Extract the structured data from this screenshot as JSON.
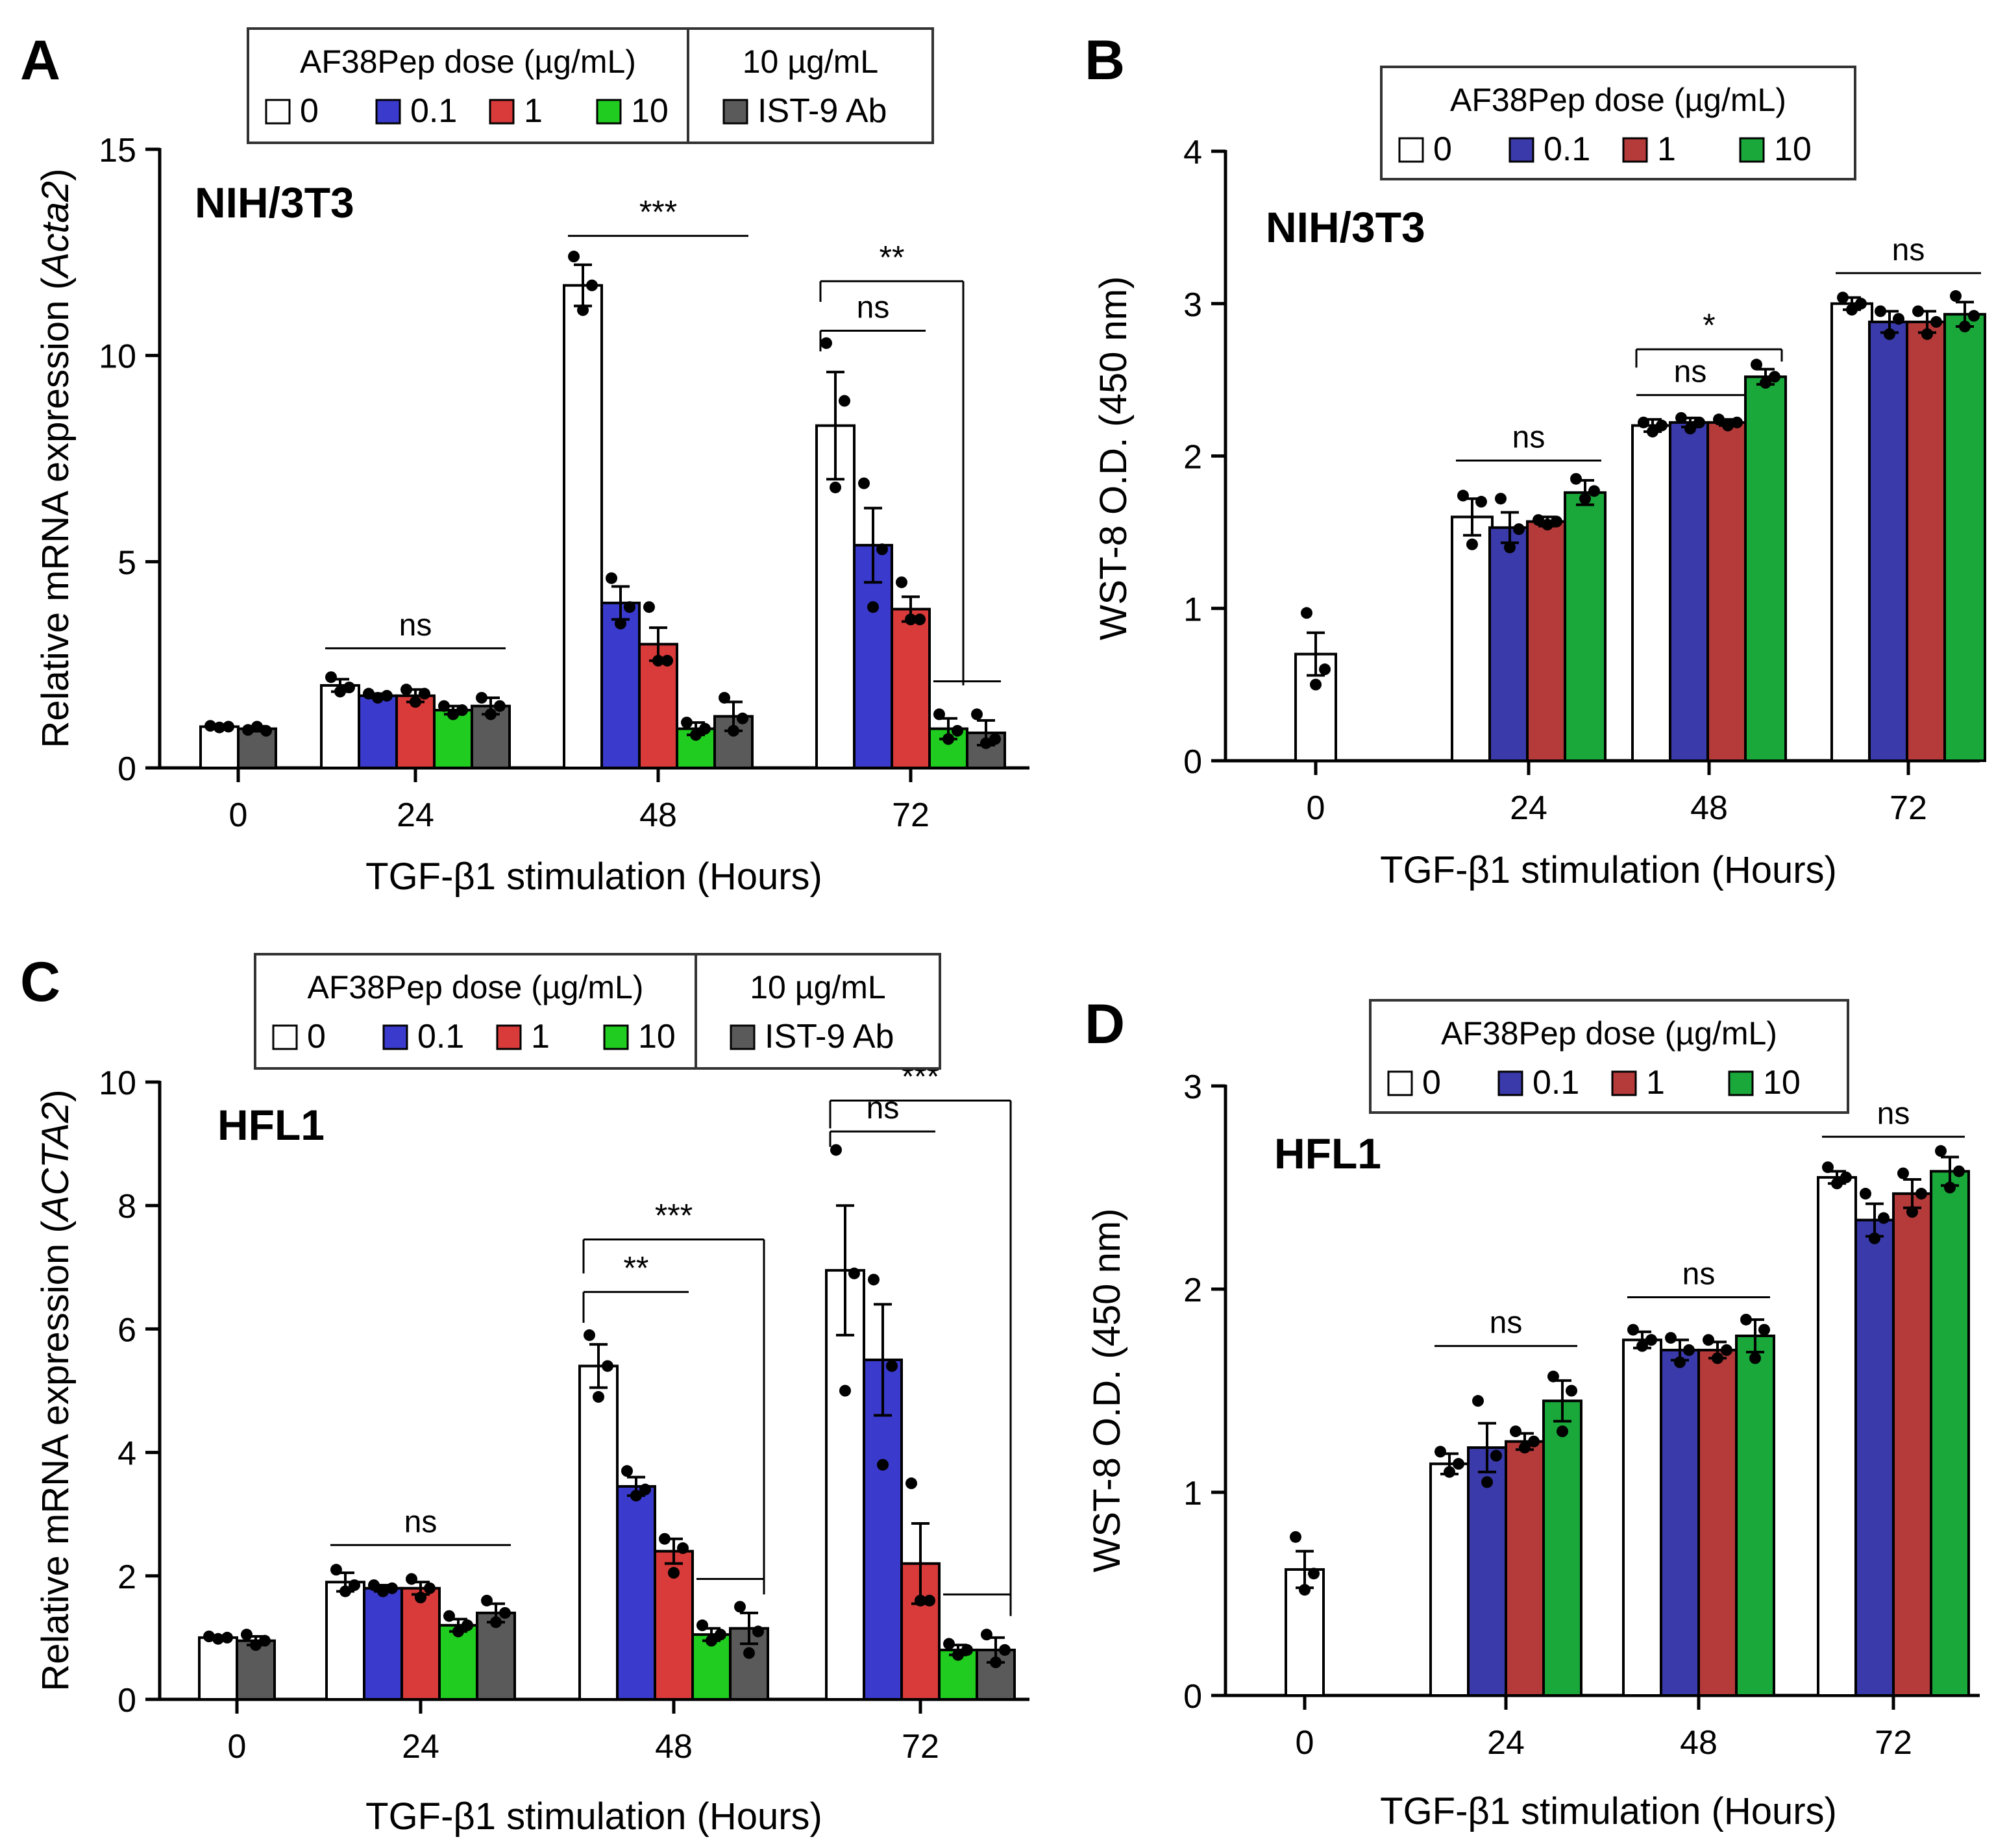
{
  "figure": {
    "legend_header": "AF38Pep dose (µg/mL)",
    "legend_extra_header": "10 µg/mL",
    "legend_labels": [
      "0",
      "0.1",
      "1",
      "10",
      "IST-9 Ab"
    ],
    "colors": [
      "#ffffff",
      "#3a3acc",
      "#d93a3a",
      "#1fcc1f",
      "#5a5a5a"
    ],
    "colors_wst": [
      "#ffffff",
      "#3a3aaa",
      "#b53a3a",
      "#1aa83a"
    ],
    "categories": [
      "0",
      "24",
      "48",
      "72"
    ],
    "xlabel": "TGF-β1 stimulation (Hours)"
  },
  "chart_data": [
    {
      "panel": "A",
      "type": "bar",
      "title": "NIH/3T3",
      "ylabel_pre": "Relative mRNA expression (",
      "ylabel_gene": "Acta2",
      "ylabel_post": ")",
      "categories": [
        "0",
        "24",
        "48",
        "72"
      ],
      "ylim": [
        0,
        15
      ],
      "yticks": [
        0,
        5,
        10,
        15
      ],
      "has_ist9": true,
      "groups": [
        {
          "hour": "0",
          "bars": [
            {
              "s": 0,
              "v": 1.0,
              "e": 0.05,
              "pts": [
                1.02,
                0.98,
                1.0
              ]
            },
            {
              "s": 4,
              "v": 0.95,
              "e": 0.06,
              "pts": [
                0.92,
                1.0,
                0.9
              ]
            }
          ]
        },
        {
          "hour": "24",
          "bars": [
            {
              "s": 0,
              "v": 2.0,
              "e": 0.15,
              "pts": [
                2.2,
                1.85,
                1.95
              ]
            },
            {
              "s": 1,
              "v": 1.75,
              "e": 0.05,
              "pts": [
                1.8,
                1.7,
                1.75
              ]
            },
            {
              "s": 2,
              "v": 1.75,
              "e": 0.15,
              "pts": [
                1.9,
                1.6,
                1.8
              ]
            },
            {
              "s": 3,
              "v": 1.4,
              "e": 0.1,
              "pts": [
                1.5,
                1.3,
                1.4
              ]
            },
            {
              "s": 4,
              "v": 1.5,
              "e": 0.2,
              "pts": [
                1.7,
                1.3,
                1.5
              ]
            }
          ]
        },
        {
          "hour": "48",
          "bars": [
            {
              "s": 0,
              "v": 11.7,
              "e": 0.5,
              "pts": [
                12.4,
                11.1,
                11.7
              ]
            },
            {
              "s": 1,
              "v": 4.0,
              "e": 0.4,
              "pts": [
                4.6,
                3.5,
                3.9
              ]
            },
            {
              "s": 2,
              "v": 3.0,
              "e": 0.4,
              "pts": [
                3.9,
                2.6,
                2.6
              ]
            },
            {
              "s": 3,
              "v": 0.95,
              "e": 0.15,
              "pts": [
                1.1,
                0.8,
                0.95
              ]
            },
            {
              "s": 4,
              "v": 1.25,
              "e": 0.35,
              "pts": [
                1.7,
                0.9,
                1.2
              ]
            }
          ]
        },
        {
          "hour": "72",
          "bars": [
            {
              "s": 0,
              "v": 8.3,
              "e": 1.3,
              "pts": [
                10.3,
                6.8,
                8.9
              ]
            },
            {
              "s": 1,
              "v": 5.4,
              "e": 0.9,
              "pts": [
                6.9,
                3.9,
                5.3
              ]
            },
            {
              "s": 2,
              "v": 3.85,
              "e": 0.3,
              "pts": [
                4.5,
                3.6,
                3.6
              ]
            },
            {
              "s": 3,
              "v": 0.95,
              "e": 0.25,
              "pts": [
                1.3,
                0.7,
                0.9
              ]
            },
            {
              "s": 4,
              "v": 0.85,
              "e": 0.3,
              "pts": [
                1.3,
                0.6,
                0.7
              ]
            }
          ]
        }
      ],
      "annotations": [
        {
          "text": "ns",
          "type": "line",
          "g1": 1,
          "b1": 0,
          "g2": 1,
          "b2": 4,
          "y": 2.9
        },
        {
          "text": "***",
          "type": "line",
          "g1": 2,
          "b1": 0,
          "g2": 2,
          "b2": 4,
          "y": 12.9
        },
        {
          "text": "**",
          "type": "bracket",
          "g1": 3,
          "b1": 0,
          "g2": 3,
          "b2": 3,
          "y": 11.8,
          "drop1": 0.5,
          "drop2": 9.8
        },
        {
          "text": "ns",
          "type": "bracket",
          "g1": 3,
          "b1": 0,
          "g2": 3,
          "b2": 2,
          "y": 10.6,
          "drop1": 0.5,
          "drop2": 0
        },
        {
          "text": "",
          "type": "line",
          "g1": 3,
          "b1": 3,
          "g2": 3,
          "b2": 4,
          "y": 2.1
        }
      ]
    },
    {
      "panel": "B",
      "type": "bar",
      "title": "NIH/3T3",
      "ylabel_pre": "WST-8 O.D. (450 nm)",
      "ylabel_gene": "",
      "ylabel_post": "",
      "categories": [
        "0",
        "24",
        "48",
        "72"
      ],
      "ylim": [
        0,
        4
      ],
      "yticks": [
        0,
        1,
        2,
        3,
        4
      ],
      "has_ist9": false,
      "groups": [
        {
          "hour": "0",
          "bars": [
            {
              "s": 0,
              "v": 0.7,
              "e": 0.14,
              "pts": [
                0.97,
                0.5,
                0.6
              ]
            }
          ]
        },
        {
          "hour": "24",
          "bars": [
            {
              "s": 0,
              "v": 1.6,
              "e": 0.12,
              "pts": [
                1.74,
                1.42,
                1.7
              ]
            },
            {
              "s": 1,
              "v": 1.53,
              "e": 0.1,
              "pts": [
                1.72,
                1.4,
                1.52
              ]
            },
            {
              "s": 2,
              "v": 1.57,
              "e": 0.03,
              "pts": [
                1.58,
                1.55,
                1.57
              ]
            },
            {
              "s": 3,
              "v": 1.76,
              "e": 0.08,
              "pts": [
                1.85,
                1.72,
                1.77
              ]
            }
          ]
        },
        {
          "hour": "48",
          "bars": [
            {
              "s": 0,
              "v": 2.2,
              "e": 0.04,
              "pts": [
                2.22,
                2.16,
                2.2
              ]
            },
            {
              "s": 1,
              "v": 2.22,
              "e": 0.03,
              "pts": [
                2.25,
                2.18,
                2.22
              ]
            },
            {
              "s": 2,
              "v": 2.22,
              "e": 0.02,
              "pts": [
                2.24,
                2.2,
                2.22
              ]
            },
            {
              "s": 3,
              "v": 2.52,
              "e": 0.05,
              "pts": [
                2.6,
                2.48,
                2.52
              ]
            }
          ]
        },
        {
          "hour": "72",
          "bars": [
            {
              "s": 0,
              "v": 3.0,
              "e": 0.04,
              "pts": [
                3.04,
                2.96,
                3.0
              ]
            },
            {
              "s": 1,
              "v": 2.88,
              "e": 0.07,
              "pts": [
                2.95,
                2.8,
                2.9
              ]
            },
            {
              "s": 2,
              "v": 2.88,
              "e": 0.07,
              "pts": [
                2.95,
                2.8,
                2.88
              ]
            },
            {
              "s": 3,
              "v": 2.93,
              "e": 0.08,
              "pts": [
                3.05,
                2.85,
                2.92
              ]
            }
          ]
        }
      ],
      "annotations": [
        {
          "text": "ns",
          "type": "line",
          "g1": 1,
          "b1": 0,
          "g2": 1,
          "b2": 3,
          "y": 1.97
        },
        {
          "text": "ns",
          "type": "line",
          "g1": 2,
          "b1": 0,
          "g2": 2,
          "b2": 2,
          "y": 2.4
        },
        {
          "text": "*",
          "type": "bracket",
          "g1": 2,
          "b1": 0,
          "g2": 2,
          "b2": 3,
          "y": 2.7,
          "drop1": 0.12,
          "drop2": 0.08
        },
        {
          "text": "ns",
          "type": "line",
          "g1": 3,
          "b1": 0,
          "g2": 3,
          "b2": 3,
          "y": 3.2
        }
      ]
    },
    {
      "panel": "C",
      "type": "bar",
      "title": "HFL1",
      "ylabel_pre": "Relative mRNA expression (",
      "ylabel_gene": "ACTA2",
      "ylabel_post": ")",
      "categories": [
        "0",
        "24",
        "48",
        "72"
      ],
      "ylim": [
        0,
        10
      ],
      "yticks": [
        0,
        2,
        4,
        6,
        8,
        10
      ],
      "has_ist9": true,
      "groups": [
        {
          "hour": "0",
          "bars": [
            {
              "s": 0,
              "v": 1.0,
              "e": 0.03,
              "pts": [
                1.02,
                0.98,
                1.0
              ]
            },
            {
              "s": 4,
              "v": 0.95,
              "e": 0.07,
              "pts": [
                1.05,
                0.88,
                0.95
              ]
            }
          ]
        },
        {
          "hour": "24",
          "bars": [
            {
              "s": 0,
              "v": 1.9,
              "e": 0.15,
              "pts": [
                2.1,
                1.75,
                1.85
              ]
            },
            {
              "s": 1,
              "v": 1.8,
              "e": 0.05,
              "pts": [
                1.85,
                1.75,
                1.8
              ]
            },
            {
              "s": 2,
              "v": 1.8,
              "e": 0.1,
              "pts": [
                1.95,
                1.65,
                1.8
              ]
            },
            {
              "s": 3,
              "v": 1.2,
              "e": 0.1,
              "pts": [
                1.35,
                1.1,
                1.2
              ]
            },
            {
              "s": 4,
              "v": 1.4,
              "e": 0.15,
              "pts": [
                1.6,
                1.25,
                1.4
              ]
            }
          ]
        },
        {
          "hour": "48",
          "bars": [
            {
              "s": 0,
              "v": 5.4,
              "e": 0.35,
              "pts": [
                5.9,
                4.9,
                5.4
              ]
            },
            {
              "s": 1,
              "v": 3.45,
              "e": 0.15,
              "pts": [
                3.7,
                3.3,
                3.4
              ]
            },
            {
              "s": 2,
              "v": 2.4,
              "e": 0.2,
              "pts": [
                2.6,
                2.05,
                2.45
              ]
            },
            {
              "s": 3,
              "v": 1.05,
              "e": 0.1,
              "pts": [
                1.2,
                0.95,
                1.05
              ]
            },
            {
              "s": 4,
              "v": 1.15,
              "e": 0.25,
              "pts": [
                1.5,
                0.75,
                1.1
              ]
            }
          ]
        },
        {
          "hour": "72",
          "bars": [
            {
              "s": 0,
              "v": 6.95,
              "e": 1.05,
              "pts": [
                8.9,
                5.0,
                6.9
              ]
            },
            {
              "s": 1,
              "v": 5.5,
              "e": 0.9,
              "pts": [
                6.8,
                3.8,
                5.4
              ]
            },
            {
              "s": 2,
              "v": 2.2,
              "e": 0.65,
              "pts": [
                3.5,
                1.6,
                1.6
              ]
            },
            {
              "s": 3,
              "v": 0.8,
              "e": 0.08,
              "pts": [
                0.9,
                0.72,
                0.8
              ]
            },
            {
              "s": 4,
              "v": 0.8,
              "e": 0.2,
              "pts": [
                1.05,
                0.6,
                0.8
              ]
            }
          ]
        }
      ],
      "annotations": [
        {
          "text": "ns",
          "type": "line",
          "g1": 1,
          "b1": 0,
          "g2": 1,
          "b2": 4,
          "y": 2.5
        },
        {
          "text": "***",
          "type": "bracket",
          "g1": 2,
          "b1": 0,
          "g2": 2,
          "b2": 4,
          "y": 7.45,
          "drop1": 0.55,
          "drop2": 5.75
        },
        {
          "text": "**",
          "type": "bracket",
          "g1": 2,
          "b1": 0,
          "g2": 2,
          "b2": 2,
          "y": 6.6,
          "drop1": 0.5,
          "drop2": 0
        },
        {
          "text": "",
          "type": "line",
          "g1": 2,
          "b1": 3,
          "g2": 2,
          "b2": 4,
          "y": 1.95
        },
        {
          "text": "***",
          "type": "bracket",
          "g1": 3,
          "b1": 0,
          "g2": 3,
          "b2": 4,
          "y": 9.7,
          "drop1": 0.45,
          "drop2": 8.35
        },
        {
          "text": "ns",
          "type": "bracket",
          "g1": 3,
          "b1": 0,
          "g2": 3,
          "b2": 2,
          "y": 9.2,
          "drop1": 0.25,
          "drop2": 0
        },
        {
          "text": "",
          "type": "line",
          "g1": 3,
          "b1": 3,
          "g2": 3,
          "b2": 4,
          "y": 1.7
        }
      ]
    },
    {
      "panel": "D",
      "type": "bar",
      "title": "HFL1",
      "ylabel_pre": "WST-8 O.D. (450 nm)",
      "ylabel_gene": "",
      "ylabel_post": "",
      "categories": [
        "0",
        "24",
        "48",
        "72"
      ],
      "ylim": [
        0,
        3
      ],
      "yticks": [
        0,
        1,
        2,
        3
      ],
      "has_ist9": false,
      "groups": [
        {
          "hour": "0",
          "bars": [
            {
              "s": 0,
              "v": 0.62,
              "e": 0.09,
              "pts": [
                0.78,
                0.52,
                0.6
              ]
            }
          ]
        },
        {
          "hour": "24",
          "bars": [
            {
              "s": 0,
              "v": 1.14,
              "e": 0.05,
              "pts": [
                1.2,
                1.1,
                1.14
              ]
            },
            {
              "s": 1,
              "v": 1.22,
              "e": 0.12,
              "pts": [
                1.45,
                1.05,
                1.18
              ]
            },
            {
              "s": 2,
              "v": 1.25,
              "e": 0.04,
              "pts": [
                1.3,
                1.22,
                1.25
              ]
            },
            {
              "s": 3,
              "v": 1.45,
              "e": 0.1,
              "pts": [
                1.57,
                1.3,
                1.5
              ]
            }
          ]
        },
        {
          "hour": "48",
          "bars": [
            {
              "s": 0,
              "v": 1.75,
              "e": 0.04,
              "pts": [
                1.8,
                1.72,
                1.75
              ]
            },
            {
              "s": 1,
              "v": 1.7,
              "e": 0.05,
              "pts": [
                1.76,
                1.64,
                1.7
              ]
            },
            {
              "s": 2,
              "v": 1.7,
              "e": 0.04,
              "pts": [
                1.75,
                1.66,
                1.7
              ]
            },
            {
              "s": 3,
              "v": 1.77,
              "e": 0.08,
              "pts": [
                1.85,
                1.66,
                1.8
              ]
            }
          ]
        },
        {
          "hour": "72",
          "bars": [
            {
              "s": 0,
              "v": 2.55,
              "e": 0.03,
              "pts": [
                2.6,
                2.52,
                2.55
              ]
            },
            {
              "s": 1,
              "v": 2.34,
              "e": 0.08,
              "pts": [
                2.47,
                2.25,
                2.35
              ]
            },
            {
              "s": 2,
              "v": 2.47,
              "e": 0.07,
              "pts": [
                2.57,
                2.38,
                2.47
              ]
            },
            {
              "s": 3,
              "v": 2.58,
              "e": 0.07,
              "pts": [
                2.68,
                2.5,
                2.58
              ]
            }
          ]
        }
      ],
      "annotations": [
        {
          "text": "ns",
          "type": "line",
          "g1": 1,
          "b1": 0,
          "g2": 1,
          "b2": 3,
          "y": 1.72
        },
        {
          "text": "ns",
          "type": "line",
          "g1": 2,
          "b1": 0,
          "g2": 2,
          "b2": 3,
          "y": 1.96
        },
        {
          "text": "ns",
          "type": "line",
          "g1": 3,
          "b1": 0,
          "g2": 3,
          "b2": 3,
          "y": 2.75
        }
      ]
    }
  ]
}
